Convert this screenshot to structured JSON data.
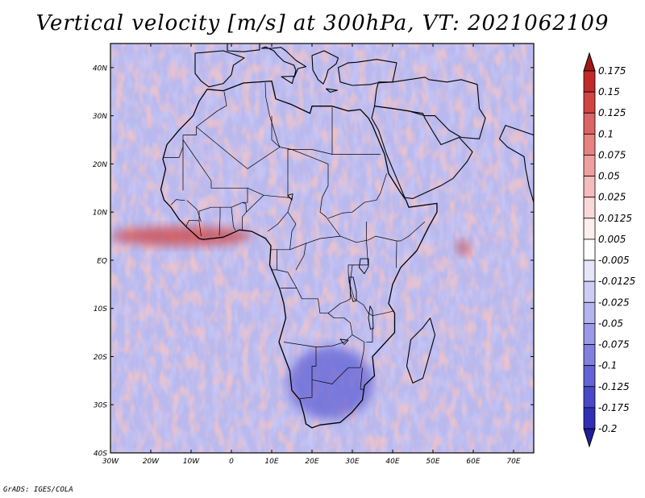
{
  "chart_data": {
    "type": "heatmap",
    "title": "Vertical velocity [m/s] at 300hPa, VT: 2021062109",
    "variable": "Vertical velocity",
    "units": "m/s",
    "level": "300hPa",
    "valid_time": "2021062109",
    "xlabel": "",
    "ylabel": "",
    "xlim": [
      -30,
      75
    ],
    "ylim": [
      -40,
      45
    ],
    "x_ticks": [
      {
        "value": -30,
        "label": "30W"
      },
      {
        "value": -20,
        "label": "20W"
      },
      {
        "value": -10,
        "label": "10W"
      },
      {
        "value": 0,
        "label": "0"
      },
      {
        "value": 10,
        "label": "10E"
      },
      {
        "value": 20,
        "label": "20E"
      },
      {
        "value": 30,
        "label": "30E"
      },
      {
        "value": 40,
        "label": "40E"
      },
      {
        "value": 50,
        "label": "50E"
      },
      {
        "value": 60,
        "label": "60E"
      },
      {
        "value": 70,
        "label": "70E"
      }
    ],
    "y_ticks": [
      {
        "value": 40,
        "label": "40N"
      },
      {
        "value": 30,
        "label": "30N"
      },
      {
        "value": 20,
        "label": "20N"
      },
      {
        "value": 10,
        "label": "10N"
      },
      {
        "value": 0,
        "label": "EQ"
      },
      {
        "value": -10,
        "label": "10S"
      },
      {
        "value": -20,
        "label": "20S"
      },
      {
        "value": -30,
        "label": "30S"
      },
      {
        "value": -40,
        "label": "40S"
      }
    ],
    "colorbar": {
      "levels": [
        "0.175",
        "0.15",
        "0.125",
        "0.1",
        "0.075",
        "0.05",
        "0.025",
        "0.0125",
        "0.005",
        "-0.005",
        "-0.0125",
        "-0.025",
        "-0.05",
        "-0.075",
        "-0.1",
        "-0.125",
        "-0.175",
        "-0.2"
      ],
      "colors": [
        "#a01818",
        "#c02a2a",
        "#d04444",
        "#dc6464",
        "#e68282",
        "#eea0a0",
        "#f4bcbc",
        "#f9d8d8",
        "#fdeeee",
        "#ffffff",
        "#e6e6fa",
        "#cdcdf4",
        "#b4b4ee",
        "#9a9ae8",
        "#8080e0",
        "#6464d6",
        "#4848c8",
        "#3030b4",
        "#1e1e9a"
      ]
    },
    "features": [
      {
        "name": "Equatorial Atlantic upward band",
        "lon": [
          -30,
          5
        ],
        "lat": [
          3,
          7
        ],
        "sign": "positive"
      },
      {
        "name": "Western Indian Ocean positive cell",
        "lon": [
          56,
          59
        ],
        "lat": [
          1,
          4
        ],
        "sign": "positive"
      },
      {
        "name": "Southern Africa subsidence",
        "lon": [
          14,
          35
        ],
        "lat": [
          -33,
          -18
        ],
        "sign": "negative"
      }
    ]
  },
  "credit": "GrADS: IGES/COLA"
}
